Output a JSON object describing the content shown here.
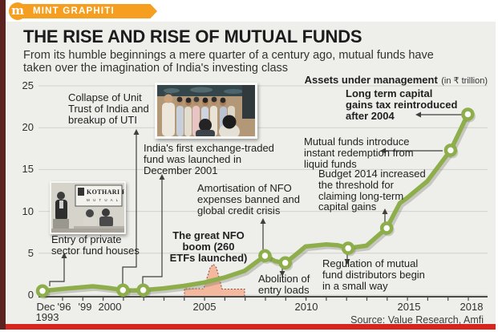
{
  "header": {
    "brand": "MINT GRAPHITI",
    "logo_letter": "m"
  },
  "title": "THE RISE AND RISE OF MUTUAL FUNDS",
  "subtitle": "From its humble beginnings a mere quarter of a century ago, mutual funds have\ntaken over the imagination of India's investing class",
  "chart_data": {
    "type": "line",
    "title": "Assets under management",
    "unit_label": "(in ₹ trillion)",
    "ylabel": "AUM (₹ trillion)",
    "ylim": [
      0,
      25
    ],
    "y_ticks": [
      25,
      20,
      15,
      10,
      5,
      0
    ],
    "x_axis_labels": [
      "Dec",
      "1993",
      "'96",
      "'99",
      "2000",
      "2005",
      "2010",
      "2015",
      "2018"
    ],
    "grid": true,
    "series": [
      {
        "name": "Assets under management (₹ trillion)",
        "points": [
          {
            "year": 1993.92,
            "value": 0.5,
            "marker": true,
            "label": "Dec 1993"
          },
          {
            "year": 1996,
            "value": 0.75
          },
          {
            "year": 1999,
            "value": 1.05
          },
          {
            "year": 2000.3,
            "value": 0.85
          },
          {
            "year": 2001,
            "value": 0.6,
            "marker": true
          },
          {
            "year": 2001.5,
            "value": 0.55
          },
          {
            "year": 2002,
            "value": 0.6,
            "marker": true
          },
          {
            "year": 2003,
            "value": 0.8
          },
          {
            "year": 2004,
            "value": 1.1
          },
          {
            "year": 2005,
            "value": 1.5
          },
          {
            "year": 2006,
            "value": 2.1
          },
          {
            "year": 2007,
            "value": 2.9
          },
          {
            "year": 2008,
            "value": 4.7,
            "marker": true
          },
          {
            "year": 2008.5,
            "value": 4.05
          },
          {
            "year": 2009,
            "value": 3.85,
            "marker": true
          },
          {
            "year": 2009.5,
            "value": 4.8
          },
          {
            "year": 2010,
            "value": 5.8
          },
          {
            "year": 2011,
            "value": 6.05
          },
          {
            "year": 2011.6,
            "value": 5.95
          },
          {
            "year": 2012.1,
            "value": 5.6,
            "marker": true
          },
          {
            "year": 2013,
            "value": 5.9
          },
          {
            "year": 2014,
            "value": 8.0,
            "marker": true
          },
          {
            "year": 2014.65,
            "value": 11.0
          },
          {
            "year": 2015,
            "value": 11.6
          },
          {
            "year": 2016,
            "value": 13.6
          },
          {
            "year": 2017.15,
            "value": 17.3,
            "marker": true
          },
          {
            "year": 2018,
            "value": 21.6,
            "marker": true
          }
        ]
      }
    ],
    "nfo_boom_area": {
      "from_year": 2004,
      "to_year": 2007,
      "spike_year": 2005.5
    },
    "annotations": {
      "collapse_uti": "Collapse of Unit\nTrust of India and\nbreakup of UTI",
      "first_etf": "India's first exchange-traded\nfund was launched in\nDecember 2001",
      "amortisation": "Amortisation of NFO\nexpenses banned and\nglobal credit crisis",
      "nfo_boom": "The great NFO\nboom (260\nETFs launched)",
      "entry_private": "Entry of private\nsector fund houses",
      "abolition": "Abolition of\nentry loads",
      "regulation": "Regulation of mutual\nfund distributors begin\nin a small way",
      "budget_2014": "Budget 2014 increased\nthe threshold for\nclaiming long-term\ncapital gains",
      "instant_redemption": "Mutual funds introduce\ninstant redemption from\nliquid funds",
      "ltcg": "Long term capital\ngains tax reintroduced\nafter 2004"
    },
    "source": "Source: Value Research, Amfi"
  },
  "photos": {
    "kothari_sign_line1": "KOTHARI P",
    "kothari_sign_line2": "M U T U A L"
  },
  "colors": {
    "accent_orange": "#f59e1f",
    "line_green": "#8dae4a",
    "area_salmon": "#f4b89f",
    "footer_red": "#d6251f",
    "frame_maroon": "#5c2220",
    "card_gray": "#eeeeea"
  }
}
